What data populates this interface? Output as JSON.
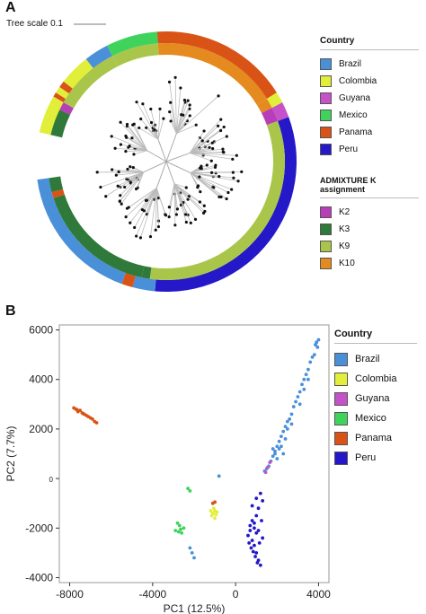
{
  "panels": {
    "a_letter": "A",
    "b_letter": "B"
  },
  "tree": {
    "scale_label": "Tree scale 0.1"
  },
  "colors": {
    "Brazil": "#4a90d9",
    "Colombia": "#e2ef3a",
    "Guyana": "#c552c8",
    "Mexico": "#3fd35c",
    "Panama": "#d95317",
    "Peru": "#2418c8",
    "K2": "#b83db9",
    "K3": "#2f7a3a",
    "K9": "#a9c64a",
    "K10": "#e58a1f"
  },
  "legend_a": {
    "country_title": "Country",
    "country_items": [
      "Brazil",
      "Colombia",
      "Guyana",
      "Mexico",
      "Panama",
      "Peru"
    ],
    "k_title": "ADMIXTURE K assignment",
    "k_items": [
      "K2",
      "K3",
      "K9",
      "K10"
    ]
  },
  "legend_b": {
    "title": "Country",
    "items": [
      "Brazil",
      "Colombia",
      "Guyana",
      "Mexico",
      "Panama",
      "Peru"
    ]
  },
  "chart_data": [
    {
      "type": "tree",
      "title": "",
      "scale": "Tree scale 0.1"
    },
    {
      "type": "scatter",
      "title": "",
      "xlabel": "PC1 (12.5%)",
      "ylabel": "PC2 (7.7%)",
      "xlim": [
        -8500,
        4500
      ],
      "ylim": [
        -4200,
        6200
      ],
      "xticks": [
        "-8000",
        "-4000",
        "0",
        "4000"
      ],
      "yticks": [
        "6000",
        "4000",
        "2000",
        "0",
        "-2000",
        "-4000"
      ],
      "xtick_values": [
        -8000,
        -4000,
        0,
        4000
      ],
      "ytick_values": [
        6000,
        4000,
        2000,
        0,
        -2000,
        -4000
      ],
      "series": [
        {
          "name": "Brazil",
          "points": [
            [
              3900,
              5500
            ],
            [
              3950,
              5300
            ],
            [
              4000,
              5600
            ],
            [
              3850,
              5400
            ],
            [
              3700,
              4900
            ],
            [
              3600,
              4700
            ],
            [
              3500,
              4400
            ],
            [
              3400,
              4200
            ],
            [
              3300,
              4000
            ],
            [
              3200,
              3800
            ],
            [
              3100,
              3500
            ],
            [
              3000,
              3300
            ],
            [
              2900,
              3100
            ],
            [
              2800,
              2900
            ],
            [
              2700,
              2600
            ],
            [
              2600,
              2400
            ],
            [
              2500,
              2300
            ],
            [
              2400,
              2100
            ],
            [
              2300,
              1900
            ],
            [
              2200,
              1700
            ],
            [
              2100,
              1500
            ],
            [
              2000,
              1300
            ],
            [
              1900,
              1100
            ],
            [
              1800,
              900
            ],
            [
              1700,
              700
            ],
            [
              1600,
              500
            ],
            [
              2100,
              1200
            ],
            [
              2000,
              800
            ],
            [
              1900,
              1000
            ],
            [
              2200,
              1300
            ],
            [
              2300,
              1000
            ],
            [
              1800,
              1200
            ],
            [
              2400,
              1600
            ],
            [
              2500,
              2000
            ],
            [
              2700,
              2200
            ],
            [
              3100,
              3000
            ],
            [
              3300,
              3600
            ],
            [
              3500,
              4000
            ],
            [
              3800,
              5000
            ],
            [
              -2100,
              -3000
            ],
            [
              -2200,
              -2800
            ],
            [
              -2000,
              -3200
            ],
            [
              -800,
              100
            ],
            [
              1500,
              400
            ],
            [
              1400,
              300
            ]
          ]
        },
        {
          "name": "Colombia",
          "points": [
            [
              -1100,
              -1400
            ],
            [
              -1000,
              -1300
            ],
            [
              -1050,
              -1200
            ],
            [
              -1150,
              -1500
            ],
            [
              -950,
              -1450
            ],
            [
              -1000,
              -1600
            ],
            [
              -1200,
              -1300
            ],
            [
              -900,
              -1350
            ]
          ]
        },
        {
          "name": "Guyana",
          "points": [
            [
              1550,
              450
            ],
            [
              1650,
              650
            ],
            [
              1450,
              250
            ]
          ]
        },
        {
          "name": "Mexico",
          "points": [
            [
              -2800,
              -1800
            ],
            [
              -2700,
              -1900
            ],
            [
              -2900,
              -2100
            ],
            [
              -2600,
              -2200
            ],
            [
              -2500,
              -2000
            ],
            [
              -2750,
              -2150
            ],
            [
              -2650,
              -2050
            ],
            [
              -2200,
              -500
            ],
            [
              -2300,
              -400
            ]
          ]
        },
        {
          "name": "Panama",
          "points": [
            [
              -7700,
              2800
            ],
            [
              -7600,
              2700
            ],
            [
              -7500,
              2750
            ],
            [
              -7400,
              2650
            ],
            [
              -7300,
              2600
            ],
            [
              -7200,
              2550
            ],
            [
              -7100,
              2500
            ],
            [
              -7000,
              2450
            ],
            [
              -6900,
              2400
            ],
            [
              -6800,
              2300
            ],
            [
              -6700,
              2250
            ],
            [
              -7800,
              2850
            ],
            [
              -7650,
              2780
            ],
            [
              -7350,
              2620
            ],
            [
              -1100,
              -1000
            ],
            [
              -1000,
              -950
            ]
          ]
        },
        {
          "name": "Peru",
          "points": [
            [
              1200,
              -600
            ],
            [
              1300,
              -900
            ],
            [
              1100,
              -1200
            ],
            [
              1000,
              -1500
            ],
            [
              800,
              -1700
            ],
            [
              900,
              -2000
            ],
            [
              1000,
              -2200
            ],
            [
              800,
              -2500
            ],
            [
              900,
              -2700
            ],
            [
              1000,
              -3000
            ],
            [
              1100,
              -3300
            ],
            [
              1200,
              -3500
            ],
            [
              700,
              -1900
            ],
            [
              600,
              -2300
            ],
            [
              750,
              -2800
            ],
            [
              850,
              -2950
            ],
            [
              950,
              -3150
            ],
            [
              1050,
              -3400
            ],
            [
              900,
              -1800
            ],
            [
              1100,
              -2100
            ],
            [
              1300,
              -2400
            ],
            [
              700,
              -2100
            ],
            [
              800,
              -1100
            ],
            [
              1150,
              -2600
            ],
            [
              650,
              -2600
            ],
            [
              1250,
              -1700
            ],
            [
              1000,
              -800
            ]
          ]
        }
      ]
    }
  ]
}
